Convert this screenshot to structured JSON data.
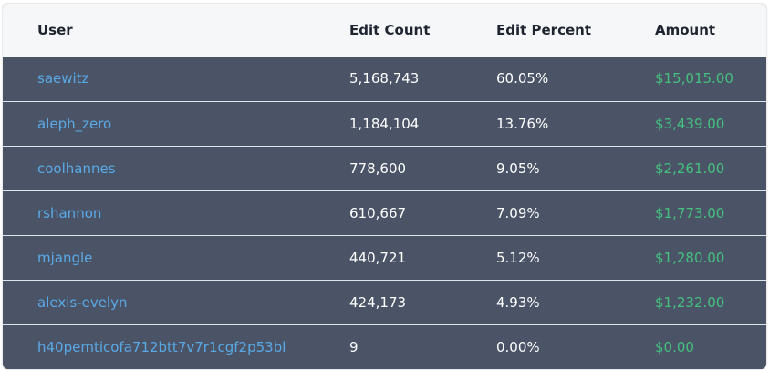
{
  "table": {
    "headers": {
      "user": "User",
      "edit_count": "Edit Count",
      "edit_percent": "Edit Percent",
      "amount": "Amount"
    },
    "rows": [
      {
        "user": "saewitz",
        "edit_count": "5,168,743",
        "edit_percent": "60.05%",
        "amount": "$15,015.00"
      },
      {
        "user": "aleph_zero",
        "edit_count": "1,184,104",
        "edit_percent": "13.76%",
        "amount": "$3,439.00"
      },
      {
        "user": "coolhannes",
        "edit_count": "778,600",
        "edit_percent": "9.05%",
        "amount": "$2,261.00"
      },
      {
        "user": "rshannon",
        "edit_count": "610,667",
        "edit_percent": "7.09%",
        "amount": "$1,773.00"
      },
      {
        "user": "mjangle",
        "edit_count": "440,721",
        "edit_percent": "5.12%",
        "amount": "$1,280.00"
      },
      {
        "user": "alexis-evelyn",
        "edit_count": "424,173",
        "edit_percent": "4.93%",
        "amount": "$1,232.00"
      },
      {
        "user": "h40pemticofa712btt7v7r1cgf2p53bl",
        "edit_count": "9",
        "edit_percent": "0.00%",
        "amount": "$0.00"
      }
    ]
  },
  "colors": {
    "header_bg": "#f5f7f9",
    "row_bg": "#4a5466",
    "link": "#5aa9e6",
    "amount": "#45c07f"
  }
}
